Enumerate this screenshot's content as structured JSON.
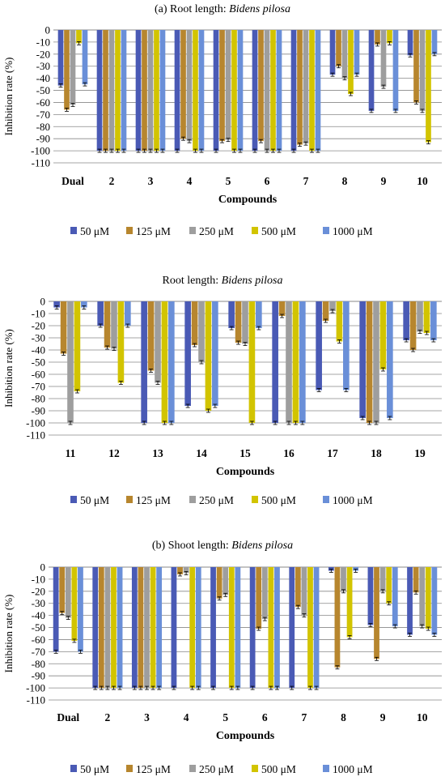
{
  "colors": {
    "s50": "#4a5ab5",
    "s125": "#b7862e",
    "s250": "#9e9e9e",
    "s500": "#d2c400",
    "s1000": "#6a8fd8",
    "grid": "#888888"
  },
  "chart_data": [
    {
      "type": "bar",
      "title_prefix": "(a) Root length: ",
      "title_italic": "Bidens pilosa",
      "xlabel": "Compounds",
      "ylabel": "Inhibition rate (%)",
      "ylim": [
        -110,
        0
      ],
      "yticks": [
        0,
        -10,
        -20,
        -30,
        -40,
        -50,
        -60,
        -70,
        -80,
        -90,
        -100,
        -110
      ],
      "categories": [
        "Dual",
        "2",
        "3",
        "4",
        "5",
        "6",
        "7",
        "8",
        "9",
        "10"
      ],
      "series": [
        {
          "name": "50 μM",
          "values": [
            -46,
            -100,
            -100,
            -100,
            -100,
            -100,
            -100,
            -37,
            -67,
            -21
          ]
        },
        {
          "name": "125 μM",
          "values": [
            -66,
            -100,
            -100,
            -90,
            -92,
            -92,
            -95,
            -30,
            -12,
            -60
          ]
        },
        {
          "name": "250 μM",
          "values": [
            -62,
            -100,
            -100,
            -92,
            -91,
            -100,
            -94,
            -40,
            -47,
            -67
          ]
        },
        {
          "name": "500 μM",
          "values": [
            -11,
            -100,
            -100,
            -100,
            -100,
            -100,
            -100,
            -53,
            -11,
            -93
          ]
        },
        {
          "name": "1000 μM",
          "values": [
            -45,
            -100,
            -100,
            -100,
            -100,
            -100,
            -100,
            -37,
            -67,
            -20
          ]
        }
      ],
      "legend": "bottom"
    },
    {
      "type": "bar",
      "title_prefix": "Root length: ",
      "title_italic": "Bidens pilosa",
      "xlabel": "Compounds",
      "ylabel": "Inhibition rate (%)",
      "ylim": [
        -110,
        0
      ],
      "yticks": [
        0,
        -10,
        -20,
        -30,
        -40,
        -50,
        -60,
        -70,
        -80,
        -90,
        -100,
        -110
      ],
      "categories": [
        "11",
        "12",
        "13",
        "14",
        "15",
        "16",
        "17",
        "18",
        "19"
      ],
      "series": [
        {
          "name": "50 μM",
          "values": [
            -5,
            -20,
            -100,
            -86,
            -22,
            -100,
            -73,
            -96,
            -32
          ]
        },
        {
          "name": "125 μM",
          "values": [
            -43,
            -38,
            -57,
            -36,
            -34,
            -12,
            -16,
            -100,
            -40
          ]
        },
        {
          "name": "250 μM",
          "values": [
            -100,
            -39,
            -67,
            -50,
            -35,
            -100,
            -8,
            -100,
            -25
          ]
        },
        {
          "name": "500 μM",
          "values": [
            -74,
            -67,
            -100,
            -90,
            -100,
            -100,
            -33,
            -56,
            -26
          ]
        },
        {
          "name": "1000 μM",
          "values": [
            -5,
            -20,
            -100,
            -86,
            -22,
            -100,
            -73,
            -96,
            -32
          ]
        }
      ],
      "legend": "bottom"
    },
    {
      "type": "bar",
      "title_prefix": "(b) Shoot length: ",
      "title_italic": "Bidens pilosa",
      "xlabel": "Compounds",
      "ylabel": "Inhibition rate (%)",
      "ylim": [
        -110,
        0
      ],
      "yticks": [
        0,
        -10,
        -20,
        -30,
        -40,
        -50,
        -60,
        -70,
        -80,
        -90,
        -100,
        -110
      ],
      "categories": [
        "Dual",
        "2",
        "3",
        "4",
        "5",
        "6",
        "7",
        "8",
        "9",
        "10"
      ],
      "series": [
        {
          "name": "50 μM",
          "values": [
            -70,
            -100,
            -100,
            -100,
            -100,
            -100,
            -100,
            -3,
            -48,
            -56
          ]
        },
        {
          "name": "125 μM",
          "values": [
            -38,
            -100,
            -100,
            -6,
            -26,
            -51,
            -33,
            -83,
            -76,
            -21
          ]
        },
        {
          "name": "250 μM",
          "values": [
            -42,
            -100,
            -100,
            -5,
            -23,
            -43,
            -40,
            -20,
            -20,
            -49
          ]
        },
        {
          "name": "500 μM",
          "values": [
            -61,
            -100,
            -100,
            -100,
            -100,
            -100,
            -100,
            -58,
            -30,
            -51
          ]
        },
        {
          "name": "1000 μM",
          "values": [
            -70,
            -100,
            -100,
            -100,
            -100,
            -100,
            -100,
            -3,
            -49,
            -56
          ]
        }
      ],
      "legend": "bottom"
    }
  ]
}
